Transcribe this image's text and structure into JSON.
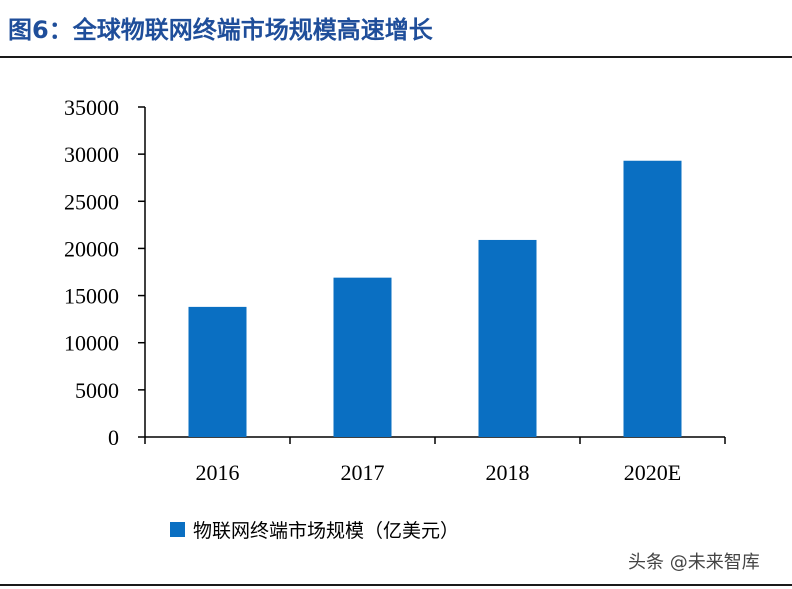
{
  "header": {
    "title": "图6：全球物联网终端市场规模高速增长"
  },
  "watermark": "头条 @未来智库",
  "colors": {
    "bar": "#0a6fc2",
    "title": "#1f4e9a",
    "axis": "#000000"
  },
  "chart_data": {
    "type": "bar",
    "categories": [
      "2016",
      "2017",
      "2018",
      "2020E"
    ],
    "series": [
      {
        "name": "物联网终端市场规模（亿美元）",
        "values": [
          13800,
          16900,
          20900,
          29300
        ]
      }
    ],
    "ylim": [
      0,
      35000
    ],
    "yticks": [
      0,
      5000,
      10000,
      15000,
      20000,
      25000,
      30000,
      35000
    ],
    "grid": false,
    "legend_position": "bottom-left"
  }
}
